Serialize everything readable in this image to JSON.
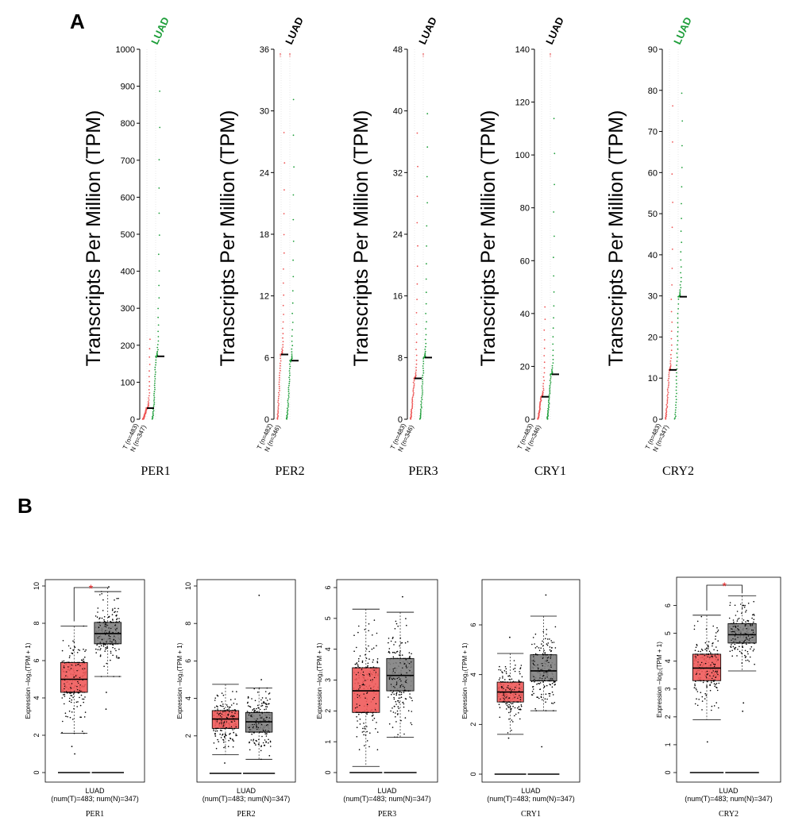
{
  "panel_a": {
    "letter": "A",
    "y_label": "Transcripts Per Million (TPM)",
    "colors": {
      "tumor": "#ee5555",
      "normal": "#1e9e3a",
      "sig_label": "#1e9e3a",
      "nonsig_label": "#000000"
    },
    "charts": [
      {
        "gene": "PER1",
        "disease": "LUAD",
        "significant": true,
        "ymax": 1000,
        "ticks": [
          0,
          100,
          200,
          300,
          400,
          500,
          600,
          700,
          800,
          900,
          1000
        ],
        "tumor_label": "T (n=483)",
        "normal_label": "N (n=347)",
        "tumor_median": 30,
        "normal_median": 170,
        "tumor_max": 230,
        "normal_max": 940,
        "outlier_mark_tumor": "",
        "outlier_mark_normal": ""
      },
      {
        "gene": "PER2",
        "disease": "LUAD",
        "significant": false,
        "ymax": 36,
        "ticks": [
          0,
          6,
          12,
          18,
          24,
          30,
          36
        ],
        "tumor_label": "T (n=482)",
        "normal_label": "N (n=346)",
        "tumor_median": 6.3,
        "normal_median": 5.7,
        "tumor_max": 29.5,
        "normal_max": 33,
        "outlier_mark_tumor": "↑",
        "outlier_mark_normal": "↑"
      },
      {
        "gene": "PER3",
        "disease": "LUAD",
        "significant": false,
        "ymax": 48,
        "ticks": [
          0,
          8,
          16,
          24,
          32,
          40,
          48
        ],
        "tumor_label": "T (n=483)",
        "normal_label": "N (n=346)",
        "tumor_median": 5.3,
        "normal_median": 8,
        "tumor_max": 39.5,
        "normal_max": 42,
        "outlier_mark_tumor": "",
        "outlier_mark_normal": "↑"
      },
      {
        "gene": "CRY1",
        "disease": "LUAD",
        "significant": false,
        "ymax": 140,
        "ticks": [
          0,
          20,
          40,
          60,
          80,
          100,
          120,
          140
        ],
        "tumor_label": "T (n=483)",
        "normal_label": "N (n=346)",
        "tumor_median": 8.5,
        "normal_median": 17,
        "tumor_max": 45,
        "normal_max": 121,
        "outlier_mark_tumor": "",
        "outlier_mark_normal": "↑"
      },
      {
        "gene": "CRY2",
        "disease": "LUAD",
        "significant": true,
        "ymax": 90,
        "ticks": [
          0,
          10,
          20,
          30,
          40,
          50,
          60,
          70,
          80,
          90
        ],
        "tumor_label": "T (n=483)",
        "normal_label": "N (n=347)",
        "tumor_median": 12,
        "normal_median": 29.8,
        "tumor_max": 81,
        "normal_max": 83,
        "outlier_mark_tumor": "",
        "outlier_mark_normal": ""
      }
    ]
  },
  "panel_b": {
    "letter": "B",
    "x_label": "LUAD",
    "x_sublabel": "(num(T)=483; num(N)=347)",
    "y_label": "Expression –log₂(TPM + 1)",
    "star": "*",
    "colors": {
      "tumor": "#f05a5a",
      "normal": "#808080"
    },
    "charts": [
      {
        "gene": "PER1",
        "significant": true,
        "ylim": [
          0,
          10
        ],
        "ticks": [
          0,
          2,
          4,
          6,
          8,
          10
        ],
        "tumor": {
          "min": 2.1,
          "q1": 4.3,
          "median": 5.0,
          "q3": 5.9,
          "max": 7.85,
          "outliers": [
            1.0,
            1.4
          ]
        },
        "normal": {
          "min": 5.15,
          "q1": 6.9,
          "median": 7.45,
          "q3": 8.05,
          "max": 9.7,
          "outliers": [
            3.4,
            4.3,
            9.95
          ]
        }
      },
      {
        "gene": "PER2",
        "significant": false,
        "ylim": [
          0,
          10
        ],
        "ticks": [
          2,
          4,
          6,
          8,
          10
        ],
        "tumor": {
          "min": 1.0,
          "q1": 2.4,
          "median": 2.9,
          "q3": 3.35,
          "max": 4.75,
          "outliers": [
            0.55
          ]
        },
        "normal": {
          "min": 0.75,
          "q1": 2.2,
          "median": 2.75,
          "q3": 3.25,
          "max": 4.55,
          "outliers": [
            9.5,
            5.0
          ]
        }
      },
      {
        "gene": "PER3",
        "significant": false,
        "ylim": [
          0,
          6
        ],
        "ticks": [
          0,
          1,
          2,
          3,
          4,
          5,
          6
        ],
        "tumor": {
          "min": 0.2,
          "q1": 1.95,
          "median": 2.65,
          "q3": 3.4,
          "max": 5.3,
          "outliers": []
        },
        "normal": {
          "min": 1.15,
          "q1": 2.65,
          "median": 3.15,
          "q3": 3.7,
          "max": 5.2,
          "outliers": [
            5.7
          ]
        }
      },
      {
        "gene": "CRY1",
        "significant": false,
        "ylim": [
          0,
          7.5
        ],
        "ticks": [
          0,
          2,
          4,
          6
        ],
        "tumor": {
          "min": 1.6,
          "q1": 2.9,
          "median": 3.3,
          "q3": 3.7,
          "max": 4.85,
          "outliers": [
            1.45,
            5.5
          ]
        },
        "normal": {
          "min": 2.55,
          "q1": 3.75,
          "median": 4.15,
          "q3": 4.8,
          "max": 6.35,
          "outliers": [
            1.1,
            7.2
          ]
        }
      },
      {
        "gene": "CRY2",
        "significant": true,
        "ylim": [
          0,
          6.7
        ],
        "ticks": [
          0,
          1,
          2,
          3,
          4,
          5,
          6
        ],
        "tumor": {
          "min": 1.9,
          "q1": 3.3,
          "median": 3.75,
          "q3": 4.25,
          "max": 5.65,
          "outliers": [
            1.1
          ]
        },
        "normal": {
          "min": 3.65,
          "q1": 4.65,
          "median": 4.95,
          "q3": 5.35,
          "max": 6.35,
          "outliers": [
            2.2,
            2.5
          ]
        }
      }
    ]
  }
}
